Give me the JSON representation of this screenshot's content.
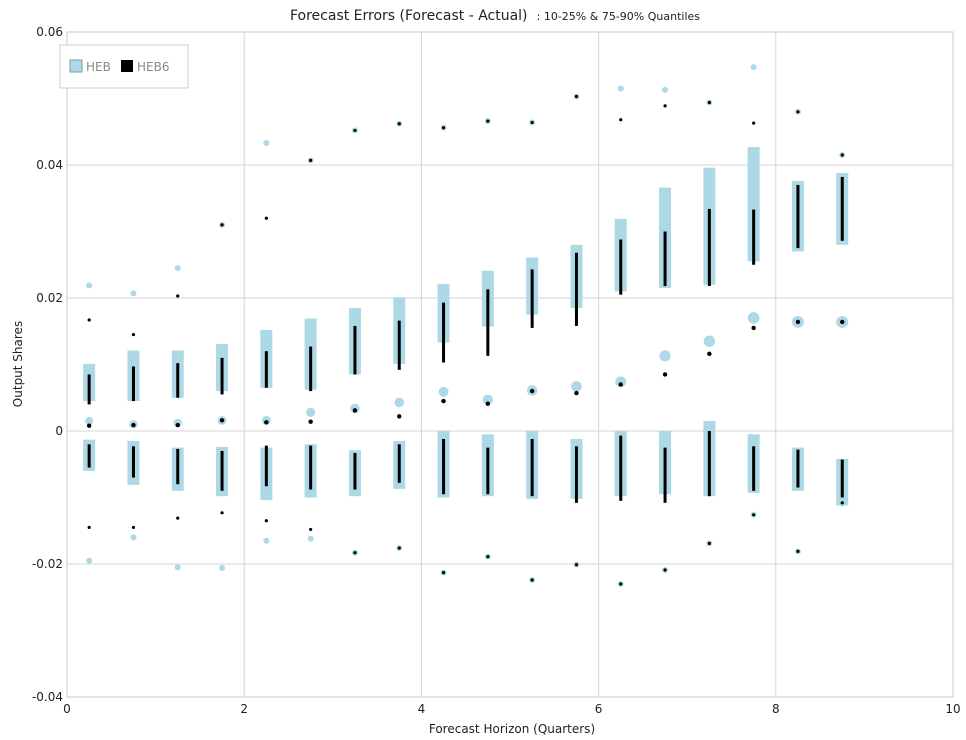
{
  "chart_data": {
    "type": "scatter",
    "title": "Forecast Errors (Forecast - Actual)",
    "subtitle": ": 10-25% & 75-90% Quantiles",
    "xlabel": "Forecast Horizon (Quarters)",
    "ylabel": "Output Shares",
    "xlim": [
      0,
      10
    ],
    "ylim": [
      -0.04,
      0.06
    ],
    "x_ticks": [
      0,
      2,
      4,
      6,
      8,
      10
    ],
    "y_ticks": [
      -0.04,
      -0.02,
      0,
      0.02,
      0.04,
      0.06
    ],
    "y_tick_labels": [
      "-0.04",
      "-0.02",
      "0",
      "0.02",
      "0.04",
      "0.06"
    ],
    "grid": true,
    "legend_position": "top-left",
    "series": [
      {
        "name": "HEB",
        "color": "#add8e6",
        "x": [
          0.25,
          0.75,
          1.25,
          1.75,
          2.25,
          2.75,
          3.25,
          3.75,
          4.25,
          4.75,
          5.25,
          5.75,
          6.25,
          6.75,
          7.25,
          7.75,
          8.25,
          8.75
        ],
        "upper_band": [
          [
            0.0045,
            0.0101
          ],
          [
            0.0045,
            0.0121
          ],
          [
            0.005,
            0.0121
          ],
          [
            0.006,
            0.0131
          ],
          [
            0.0065,
            0.0152
          ],
          [
            0.0062,
            0.0169
          ],
          [
            0.0085,
            0.0185
          ],
          [
            0.0101,
            0.0201
          ],
          [
            0.0133,
            0.0221
          ],
          [
            0.0157,
            0.0241
          ],
          [
            0.0175,
            0.0261
          ],
          [
            0.0185,
            0.028
          ],
          [
            0.021,
            0.0319
          ],
          [
            0.0215,
            0.0366
          ],
          [
            0.022,
            0.0396
          ],
          [
            0.0255,
            0.0427
          ],
          [
            0.027,
            0.0376
          ],
          [
            0.028,
            0.0388
          ]
        ],
        "lower_band": [
          [
            -0.006,
            -0.0013
          ],
          [
            -0.0081,
            -0.0015
          ],
          [
            -0.009,
            -0.0025
          ],
          [
            -0.0098,
            -0.0024
          ],
          [
            -0.0104,
            -0.0025
          ],
          [
            -0.01,
            -0.002
          ],
          [
            -0.0098,
            -0.0029
          ],
          [
            -0.0087,
            -0.0015
          ],
          [
            -0.01,
            0.0
          ],
          [
            -0.0098,
            -0.0005
          ],
          [
            -0.0102,
            0.0
          ],
          [
            -0.0102,
            -0.0012
          ],
          [
            -0.0098,
            0.0
          ],
          [
            -0.0095,
            0.0
          ],
          [
            -0.0098,
            0.0015
          ],
          [
            -0.0093,
            -0.0005
          ],
          [
            -0.009,
            -0.0025
          ],
          [
            -0.0112,
            -0.0042
          ]
        ],
        "median": [
          0.0015,
          0.001,
          0.0012,
          0.0016,
          0.0016,
          0.0028,
          0.0034,
          0.0043,
          0.0059,
          0.0047,
          0.0061,
          0.0067,
          0.0074,
          0.0113,
          0.0135,
          0.017,
          0.0164,
          0.0164
        ],
        "p5": [
          -0.0195,
          -0.016,
          -0.0205,
          -0.0206,
          -0.0165,
          -0.0162,
          -0.0183,
          -0.0176,
          -0.0213,
          -0.0189,
          -0.0224,
          -0.0201,
          -0.023,
          -0.0209,
          -0.0169,
          -0.0126,
          -0.0181,
          -0.0109
        ],
        "p95": [
          0.0219,
          0.0207,
          0.0245,
          0.031,
          0.0433,
          0.0407,
          0.0452,
          0.0462,
          0.0456,
          0.0466,
          0.0464,
          0.0503,
          0.0515,
          0.0513,
          0.0494,
          0.0547,
          0.048,
          0.0415
        ]
      },
      {
        "name": "HEB6",
        "color": "#000000",
        "x": [
          0.25,
          0.75,
          1.25,
          1.75,
          2.25,
          2.75,
          3.25,
          3.75,
          4.25,
          4.75,
          5.25,
          5.75,
          6.25,
          6.75,
          7.25,
          7.75,
          8.25,
          8.75
        ],
        "upper_band": [
          [
            0.004,
            0.0085
          ],
          [
            0.0045,
            0.0097
          ],
          [
            0.005,
            0.0102
          ],
          [
            0.0055,
            0.011
          ],
          [
            0.0065,
            0.012
          ],
          [
            0.006,
            0.0127
          ],
          [
            0.0085,
            0.0158
          ],
          [
            0.0092,
            0.0166
          ],
          [
            0.0103,
            0.0193
          ],
          [
            0.0113,
            0.0213
          ],
          [
            0.0155,
            0.0243
          ],
          [
            0.0158,
            0.0268
          ],
          [
            0.0205,
            0.0288
          ],
          [
            0.0218,
            0.03
          ],
          [
            0.0218,
            0.0334
          ],
          [
            0.025,
            0.0333
          ],
          [
            0.0275,
            0.037
          ],
          [
            0.0286,
            0.0382
          ]
        ],
        "lower_band": [
          [
            -0.0055,
            -0.002
          ],
          [
            -0.007,
            -0.0023
          ],
          [
            -0.008,
            -0.0027
          ],
          [
            -0.009,
            -0.003
          ],
          [
            -0.0083,
            -0.0022
          ],
          [
            -0.0088,
            -0.0022
          ],
          [
            -0.0088,
            -0.0033
          ],
          [
            -0.0078,
            -0.002
          ],
          [
            -0.0095,
            -0.0012
          ],
          [
            -0.0095,
            -0.0025
          ],
          [
            -0.0098,
            -0.0012
          ],
          [
            -0.0108,
            -0.0023
          ],
          [
            -0.0105,
            -0.0007
          ],
          [
            -0.0108,
            -0.0025
          ],
          [
            -0.0098,
            0.0
          ],
          [
            -0.009,
            -0.0023
          ],
          [
            -0.0085,
            -0.0028
          ],
          [
            -0.01,
            -0.0043
          ]
        ],
        "median": [
          0.0008,
          0.0009,
          0.0009,
          0.0016,
          0.0013,
          0.0014,
          0.0031,
          0.0022,
          0.0045,
          0.0041,
          0.006,
          0.0057,
          0.007,
          0.0085,
          0.0116,
          0.0155,
          0.0164,
          0.0164
        ],
        "p5": [
          -0.0145,
          -0.0145,
          -0.0131,
          -0.0123,
          -0.0135,
          -0.0148,
          -0.0183,
          -0.0176,
          -0.0213,
          -0.0189,
          -0.0224,
          -0.0201,
          -0.023,
          -0.0209,
          -0.0169,
          -0.0126,
          -0.0181,
          -0.0108
        ],
        "p95": [
          0.0167,
          0.0145,
          0.0203,
          0.031,
          0.032,
          0.0407,
          0.0452,
          0.0462,
          0.0456,
          0.0466,
          0.0464,
          0.0503,
          0.0468,
          0.0489,
          0.0494,
          0.0463,
          0.048,
          0.0415
        ]
      }
    ]
  }
}
